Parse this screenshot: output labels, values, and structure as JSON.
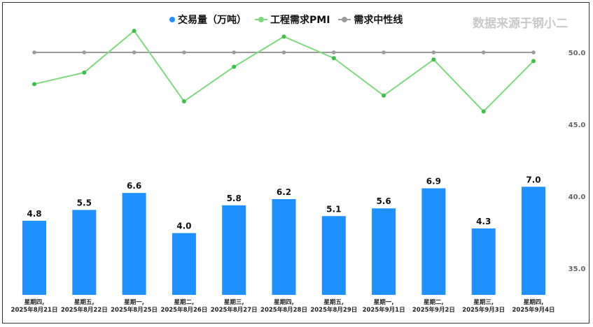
{
  "source_text": "数据来源于钢小二",
  "legend": {
    "volume": "交易量（万吨）",
    "pmi": "工程需求PMI",
    "neutral": "需求中性线"
  },
  "colors": {
    "bar": "#1e90ff",
    "pmi": "#7ed97e",
    "neutral": "#9b9b9b",
    "axis_text": "#666666"
  },
  "chart_data": {
    "type": "bar",
    "categories": [
      [
        "星期四,",
        "2025年8月21日"
      ],
      [
        "星期五,",
        "2025年8月22日"
      ],
      [
        "星期一,",
        "2025年8月25日"
      ],
      [
        "星期二,",
        "2025年8月26日"
      ],
      [
        "星期三,",
        "2025年8月27日"
      ],
      [
        "星期四,",
        "2025年8月28日"
      ],
      [
        "星期五,",
        "2025年8月29日"
      ],
      [
        "星期一,",
        "2025年9月1日"
      ],
      [
        "星期二,",
        "2025年9月2日"
      ],
      [
        "星期三,",
        "2025年9月3日"
      ],
      [
        "星期四,",
        "2025年9月4日"
      ]
    ],
    "series": [
      {
        "name": "交易量（万吨）",
        "type": "bar",
        "values": [
          4.8,
          5.5,
          6.6,
          4.0,
          5.8,
          6.2,
          5.1,
          5.6,
          6.9,
          4.3,
          7.0
        ]
      },
      {
        "name": "工程需求PMI",
        "type": "line",
        "axis": "right",
        "values": [
          47.8,
          48.6,
          51.5,
          46.6,
          49.0,
          51.1,
          49.6,
          47.0,
          49.5,
          45.9,
          49.4
        ]
      },
      {
        "name": "需求中性线",
        "type": "line",
        "axis": "right",
        "values": [
          50,
          50,
          50,
          50,
          50,
          50,
          50,
          50,
          50,
          50,
          50
        ]
      }
    ],
    "y_right": {
      "ticks": [
        35.0,
        40.0,
        45.0,
        50.0
      ],
      "tick_labels": [
        "35.0",
        "40.0",
        "45.0",
        "50.0"
      ]
    },
    "legend_position": "top",
    "grid": false
  }
}
